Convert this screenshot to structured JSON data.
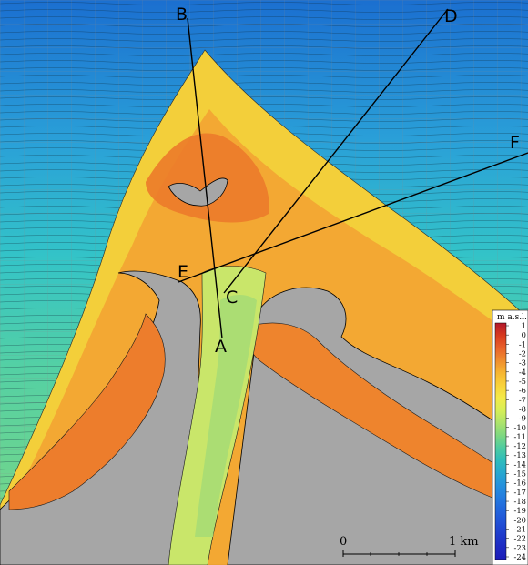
{
  "map": {
    "profile_labels": [
      "A",
      "B",
      "C",
      "D",
      "E",
      "F"
    ]
  },
  "legend": {
    "title": "m a.s.l.",
    "ticks": [
      "1",
      "0",
      "-1",
      "-2",
      "-3",
      "-4",
      "-5",
      "-6",
      "-7",
      "-8",
      "-9",
      "-10",
      "-11",
      "-12",
      "-13",
      "-14",
      "-15",
      "-16",
      "-17",
      "-18",
      "-19",
      "-20",
      "-21",
      "-22",
      "-23",
      "-24"
    ],
    "colors": [
      "#b2182b",
      "#d83a1e",
      "#e8612a",
      "#ef8d2e",
      "#f6b632",
      "#f9d23a",
      "#f4ea48",
      "#d7ef56",
      "#aee46b",
      "#7fd880",
      "#4fcca0",
      "#2fbdbb",
      "#27a8cf",
      "#2592dc",
      "#247cdf",
      "#2266dc",
      "#2151d6",
      "#1f3ccc",
      "#1e2ac2",
      "#1c1cb8"
    ]
  },
  "scale_bar": {
    "start_label": "0",
    "end_label": "1 km"
  }
}
